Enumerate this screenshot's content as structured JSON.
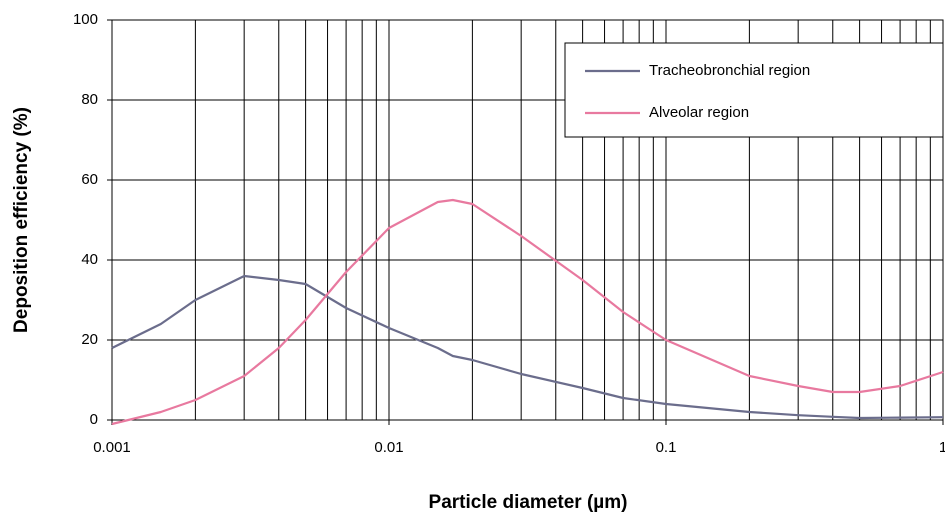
{
  "chart_data": {
    "type": "line",
    "x_label": "Particle diameter (µm)",
    "y_label": "Deposition efficiency (%)",
    "x": [
      0.001,
      0.0015,
      0.002,
      0.003,
      0.004,
      0.005,
      0.007,
      0.01,
      0.015,
      0.017,
      0.02,
      0.03,
      0.05,
      0.07,
      0.1,
      0.2,
      0.3,
      0.4,
      0.5,
      0.7,
      1
    ],
    "series": [
      {
        "name": "Tracheobronchial region",
        "color": "#6b6d8c",
        "values": [
          18,
          24,
          30,
          36,
          35,
          34,
          28,
          23,
          18,
          16,
          15,
          11.5,
          8,
          5.5,
          4,
          2,
          1.2,
          0.8,
          0.5,
          0.6,
          0.7
        ]
      },
      {
        "name": "Alveolar region",
        "color": "#e8799f",
        "values": [
          -1,
          2,
          5,
          11,
          18,
          25,
          37,
          48,
          54.5,
          55,
          54,
          46,
          35,
          27,
          20,
          11,
          8.5,
          7,
          7,
          8.5,
          12
        ]
      }
    ],
    "xlim": [
      0.001,
      1
    ],
    "xscale": "log",
    "xticks": [
      0.001,
      0.01,
      0.1,
      1
    ],
    "xminorticks": [
      0.002,
      0.003,
      0.004,
      0.005,
      0.006,
      0.007,
      0.008,
      0.009,
      0.02,
      0.03,
      0.04,
      0.05,
      0.06,
      0.07,
      0.08,
      0.09,
      0.2,
      0.3,
      0.4,
      0.5,
      0.6,
      0.7,
      0.8,
      0.9
    ],
    "ylim": [
      0,
      100
    ],
    "yticks": [
      0,
      20,
      40,
      60,
      80,
      100
    ],
    "grid": true,
    "legend": "upper right"
  }
}
